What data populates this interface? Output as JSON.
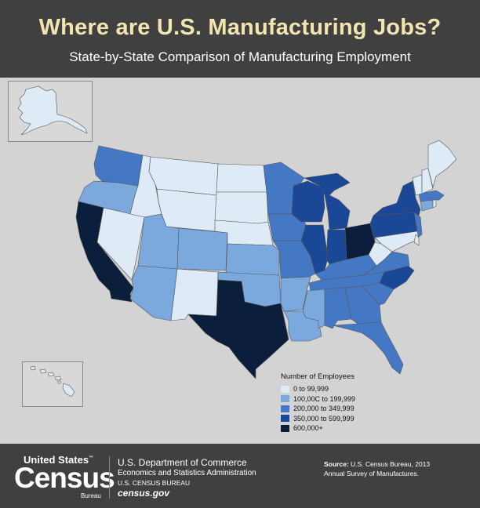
{
  "header": {
    "title": "Where are U.S. Manufacturing Jobs?",
    "subtitle": "State-by-State Comparison of Manufacturing Employment"
  },
  "legend": {
    "title": "Number of Employees",
    "items": [
      {
        "label": "0 to 99,999",
        "color": "#dfeaf7"
      },
      {
        "label": "100,00C to 199,999",
        "color": "#7ba9dd"
      },
      {
        "label": "200,000 to 349,999",
        "color": "#4578c4"
      },
      {
        "label": "350,000 to 599,999",
        "color": "#1a4796"
      },
      {
        "label": "600,000+",
        "color": "#0b1e3c"
      }
    ]
  },
  "map_data": {
    "class_colors": [
      "#dfeaf7",
      "#7ba9dd",
      "#4578c4",
      "#1a4796",
      "#0b1e3c"
    ],
    "state_classes": {
      "WA": 2,
      "OR": 1,
      "CA": 4,
      "NV": 0,
      "ID": 0,
      "MT": 0,
      "WY": 0,
      "UT": 1,
      "AZ": 1,
      "CO": 1,
      "NM": 0,
      "ND": 0,
      "SD": 0,
      "NE": 0,
      "KS": 1,
      "OK": 1,
      "TX": 4,
      "MN": 2,
      "IA": 2,
      "MO": 2,
      "AR": 1,
      "LA": 1,
      "WI": 3,
      "IL": 3,
      "MI": 3,
      "IN": 3,
      "OH": 4,
      "KY": 2,
      "TN": 2,
      "MS": 1,
      "AL": 2,
      "GA": 2,
      "FL": 2,
      "SC": 2,
      "NC": 3,
      "VA": 2,
      "WV": 0,
      "PA": 3,
      "NY": 3,
      "NJ": 2,
      "MD": 0,
      "DE": 0,
      "CT": 1,
      "RI": 0,
      "MA": 2,
      "VT": 0,
      "NH": 0,
      "ME": 0,
      "AK": 0,
      "HI": 0
    }
  },
  "footer": {
    "logo_top": "United States",
    "logo_tm": "™",
    "logo_main": "Census",
    "logo_bottom": "Bureau",
    "department": "U.S. Department of Commerce",
    "administration": "Economics and Statistics Administration",
    "bureau": "U.S. CENSUS BUREAU",
    "website": "census.gov",
    "source_label": "Source:",
    "source_text": "U.S. Census Bureau, 2013",
    "source_text2": "Annual Survey of Manufactures."
  }
}
